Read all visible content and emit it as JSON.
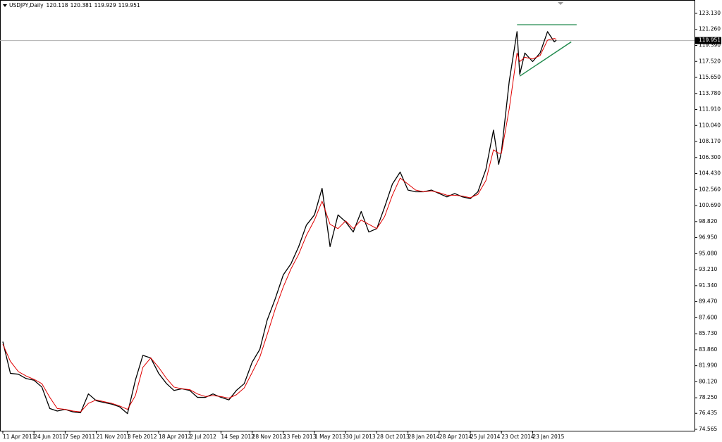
{
  "chart_data": {
    "type": "line",
    "title": "USDJPY,Daily",
    "ohlc": [
      120.118,
      120.381,
      119.929,
      119.951
    ],
    "last_price": 119.951,
    "x": [
      "2011-04-11",
      "2011-04-29",
      "2011-05-18",
      "2011-06-05",
      "2011-06-24",
      "2011-07-13",
      "2011-08-01",
      "2011-08-19",
      "2011-09-07",
      "2011-09-26",
      "2011-10-14",
      "2011-11-02",
      "2011-11-21",
      "2011-12-09",
      "2011-12-28",
      "2012-01-15",
      "2012-02-03",
      "2012-02-22",
      "2012-03-11",
      "2012-03-30",
      "2012-04-18",
      "2012-05-07",
      "2012-05-25",
      "2012-06-13",
      "2012-07-02",
      "2012-07-20",
      "2012-08-08",
      "2012-08-26",
      "2012-09-14",
      "2012-10-03",
      "2012-10-21",
      "2012-11-09",
      "2012-11-28",
      "2012-12-17",
      "2013-01-04",
      "2013-01-24",
      "2013-02-13",
      "2013-03-04",
      "2013-03-23",
      "2013-04-11",
      "2013-05-01",
      "2013-05-23",
      "2013-06-15",
      "2013-07-08",
      "2013-07-30",
      "2013-08-21",
      "2013-09-13",
      "2013-10-05",
      "2013-10-28",
      "2013-11-20",
      "2013-12-13",
      "2014-01-05",
      "2014-01-28",
      "2014-02-19",
      "2014-03-14",
      "2014-04-06",
      "2014-04-28",
      "2014-05-20",
      "2014-06-11",
      "2014-07-03",
      "2014-07-25",
      "2014-08-16",
      "2014-09-08",
      "2014-09-30",
      "2014-10-15",
      "2014-10-23",
      "2014-11-15",
      "2014-12-08",
      "2014-12-16",
      "2014-12-31",
      "2015-01-23",
      "2015-02-14",
      "2015-03-08",
      "2015-03-28",
      "2015-04-03"
    ],
    "series": [
      {
        "color": "#000000",
        "values": [
          84.8,
          81.1,
          81.0,
          80.5,
          80.3,
          79.5,
          77.0,
          76.7,
          76.9,
          76.6,
          76.5,
          78.7,
          77.9,
          77.7,
          77.5,
          77.2,
          76.4,
          80.3,
          83.2,
          82.9,
          81.1,
          79.9,
          79.1,
          79.3,
          79.1,
          78.3,
          78.3,
          78.7,
          78.3,
          78.0,
          79.1,
          79.9,
          82.4,
          83.9,
          87.3,
          89.8,
          92.6,
          93.9,
          95.9,
          98.4,
          99.6,
          102.7,
          95.9,
          99.6,
          98.8,
          97.6,
          100.0,
          97.6,
          98.0,
          100.5,
          103.2,
          104.6,
          102.5,
          102.3,
          102.3,
          102.5,
          102.1,
          101.7,
          102.1,
          101.7,
          101.5,
          102.3,
          104.9,
          109.5,
          105.5,
          107.0,
          115.2,
          121.0,
          116.0,
          118.5,
          117.5,
          118.5,
          121.0,
          119.8,
          120.0
        ]
      },
      {
        "color": "#e00000",
        "values": [
          84.5,
          82.5,
          81.3,
          80.8,
          80.4,
          79.9,
          78.3,
          77.0,
          76.9,
          76.7,
          76.6,
          77.6,
          78.0,
          77.8,
          77.6,
          77.3,
          76.9,
          78.5,
          81.8,
          82.9,
          81.8,
          80.5,
          79.5,
          79.3,
          79.2,
          78.7,
          78.4,
          78.5,
          78.4,
          78.2,
          78.6,
          79.4,
          81.2,
          83.0,
          85.6,
          88.6,
          91.2,
          93.3,
          95.0,
          97.2,
          99.0,
          101.2,
          98.5,
          98.0,
          98.9,
          98.0,
          99.0,
          98.5,
          98.0,
          99.4,
          101.9,
          103.9,
          103.2,
          102.5,
          102.3,
          102.4,
          102.2,
          101.9,
          101.9,
          101.8,
          101.6,
          102.0,
          103.6,
          107.2,
          106.8,
          106.8,
          112.0,
          118.5,
          117.5,
          118.0,
          117.8,
          118.2,
          120.0,
          120.2,
          120.1
        ]
      }
    ],
    "trendlines": [
      {
        "color": "#1f8a4c",
        "x": [
          "2014-12-08",
          "2015-06-02"
        ],
        "values": [
          121.8,
          121.8
        ]
      },
      {
        "color": "#1f8a4c",
        "x": [
          "2014-12-16",
          "2015-05-17"
        ],
        "values": [
          115.8,
          119.8
        ]
      }
    ],
    "ylim": [
      74.4,
      124.69
    ],
    "yticks": [
      {
        "value": 123.13,
        "label": "123.130"
      },
      {
        "value": 121.26,
        "label": "121.260"
      },
      {
        "value": 119.39,
        "label": "119.390"
      },
      {
        "value": 117.52,
        "label": "117.520"
      },
      {
        "value": 115.65,
        "label": "115.650"
      },
      {
        "value": 113.78,
        "label": "113.780"
      },
      {
        "value": 111.91,
        "label": "111.910"
      },
      {
        "value": 110.04,
        "label": "110.040"
      },
      {
        "value": 108.17,
        "label": "108.170"
      },
      {
        "value": 106.3,
        "label": "106.300"
      },
      {
        "value": 104.43,
        "label": "104.430"
      },
      {
        "value": 102.56,
        "label": "102.560"
      },
      {
        "value": 100.69,
        "label": "100.690"
      },
      {
        "value": 98.82,
        "label": "98.820"
      },
      {
        "value": 96.95,
        "label": "96.950"
      },
      {
        "value": 95.08,
        "label": "95.080"
      },
      {
        "value": 93.21,
        "label": "93.210"
      },
      {
        "value": 91.34,
        "label": "91.340"
      },
      {
        "value": 89.47,
        "label": "89.470"
      },
      {
        "value": 87.6,
        "label": "87.600"
      },
      {
        "value": 85.73,
        "label": "85.730"
      },
      {
        "value": 83.86,
        "label": "83.860"
      },
      {
        "value": 81.99,
        "label": "81.990"
      },
      {
        "value": 80.12,
        "label": "80.120"
      },
      {
        "value": 78.25,
        "label": "78.250"
      },
      76.435,
      74.565
    ],
    "xticks": [
      {
        "value": "2011-04-11",
        "label": "11 Apr 2011"
      },
      {
        "value": "2011-06-24",
        "label": "24 Jun 2011"
      },
      {
        "value": "2011-09-07",
        "label": "7 Sep 2011"
      },
      {
        "value": "2011-11-21",
        "label": "21 Nov 2011"
      },
      {
        "value": "2012-02-03",
        "label": "3 Feb 2012"
      },
      {
        "value": "2012-04-18",
        "label": "18 Apr 2012"
      },
      {
        "value": "2012-07-02",
        "label": "2 Jul 2012"
      },
      {
        "value": "2012-09-14",
        "label": "14 Sep 2012"
      },
      {
        "value": "2012-11-28",
        "label": "28 Nov 2012"
      },
      {
        "value": "2013-02-13",
        "label": "13 Feb 2013"
      },
      {
        "value": "2013-05-01",
        "label": "1 May 2013"
      },
      {
        "value": "2013-07-30",
        "label": "30 Jul 2013"
      },
      {
        "value": "2013-10-28",
        "label": "28 Oct 2013"
      },
      {
        "value": "2014-01-28",
        "label": "28 Jan 2014"
      },
      {
        "value": "2014-04-28",
        "label": "28 Apr 2014"
      },
      {
        "value": "2014-07-25",
        "label": "25 Jul 2014"
      },
      {
        "value": "2014-10-23",
        "label": "23 Oct 2014"
      },
      {
        "value": "2015-01-23",
        "label": "23 Jan 2015"
      }
    ]
  }
}
